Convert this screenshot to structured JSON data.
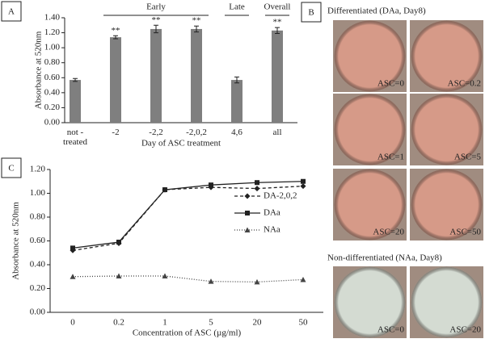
{
  "chart_data": [
    {
      "type": "bar",
      "panel_label": "A",
      "y_label": "Absorbance at 520nm",
      "x_label": "Day of ASC treatment",
      "categories": [
        "not - treated",
        "-2",
        "-2,2",
        "-2,0,2",
        "4,6",
        "all"
      ],
      "values": [
        0.57,
        1.14,
        1.25,
        1.25,
        0.57,
        1.23
      ],
      "errors": [
        0.02,
        0.02,
        0.05,
        0.04,
        0.04,
        0.04
      ],
      "significance": [
        null,
        "**",
        "**",
        "**",
        null,
        "**"
      ],
      "groups": [
        {
          "label": "Early",
          "from": 1,
          "to": 3
        },
        {
          "label": "Late",
          "from": 4,
          "to": 4
        },
        {
          "label": "Overall",
          "from": 5,
          "to": 5
        }
      ],
      "color": "#7f7f7f",
      "ylim": [
        0,
        1.4
      ],
      "yticks": [
        {
          "value": 0,
          "label": "0.00"
        },
        {
          "value": 0.2,
          "label": "0.20"
        },
        {
          "value": 0.4,
          "label": "0.40"
        },
        {
          "value": 0.6,
          "label": "0.60"
        },
        {
          "value": 0.8,
          "label": "0.80"
        },
        {
          "value": 1.0,
          "label": "1.00"
        },
        {
          "value": 1.2,
          "label": "1.20"
        },
        {
          "value": 1.4,
          "label": "1.40"
        }
      ]
    },
    {
      "type": "line",
      "panel_label": "C",
      "y_label": "Absorbance at 520nm",
      "x_label": "Concentration of ASC (µg/ml)",
      "categories": [
        "0",
        "0.2",
        "1",
        "5",
        "20",
        "50"
      ],
      "series": [
        {
          "name": "DA-2,0,2",
          "color": "#222222",
          "dash": "4,3",
          "marker": "diamond",
          "values": [
            0.52,
            0.58,
            1.03,
            1.05,
            1.04,
            1.06
          ]
        },
        {
          "name": "DAa",
          "color": "#222222",
          "dash": "none",
          "marker": "square",
          "values": [
            0.54,
            0.59,
            1.03,
            1.07,
            1.09,
            1.1
          ]
        },
        {
          "name": "NAa",
          "color": "#444444",
          "dash": "1,2",
          "marker": "triangle",
          "values": [
            0.3,
            0.305,
            0.305,
            0.26,
            0.255,
            0.275
          ]
        }
      ],
      "ylim": [
        0,
        1.2
      ],
      "yticks": [
        {
          "value": 0,
          "label": "0.00"
        },
        {
          "value": 0.2,
          "label": "0.20"
        },
        {
          "value": 0.4,
          "label": "0.40"
        },
        {
          "value": 0.6,
          "label": "0.60"
        },
        {
          "value": 0.8,
          "label": "0.80"
        },
        {
          "value": 1.0,
          "label": "1.00"
        },
        {
          "value": 1.2,
          "label": "1.20"
        }
      ]
    }
  ],
  "panel_b": {
    "panel_label": "B",
    "sections": [
      {
        "title": "Differentiated (DAa, Day8)",
        "well_color": "#d69a88",
        "wells": [
          "ASC=0",
          "ASC=0.2",
          "ASC=1",
          "ASC=5",
          "ASC=20",
          "ASC=50"
        ]
      },
      {
        "title": "Non-differentiated (NAa, Day8)",
        "well_color": "#d4dbd2",
        "wells": [
          "ASC=0",
          "ASC=20"
        ]
      }
    ]
  }
}
